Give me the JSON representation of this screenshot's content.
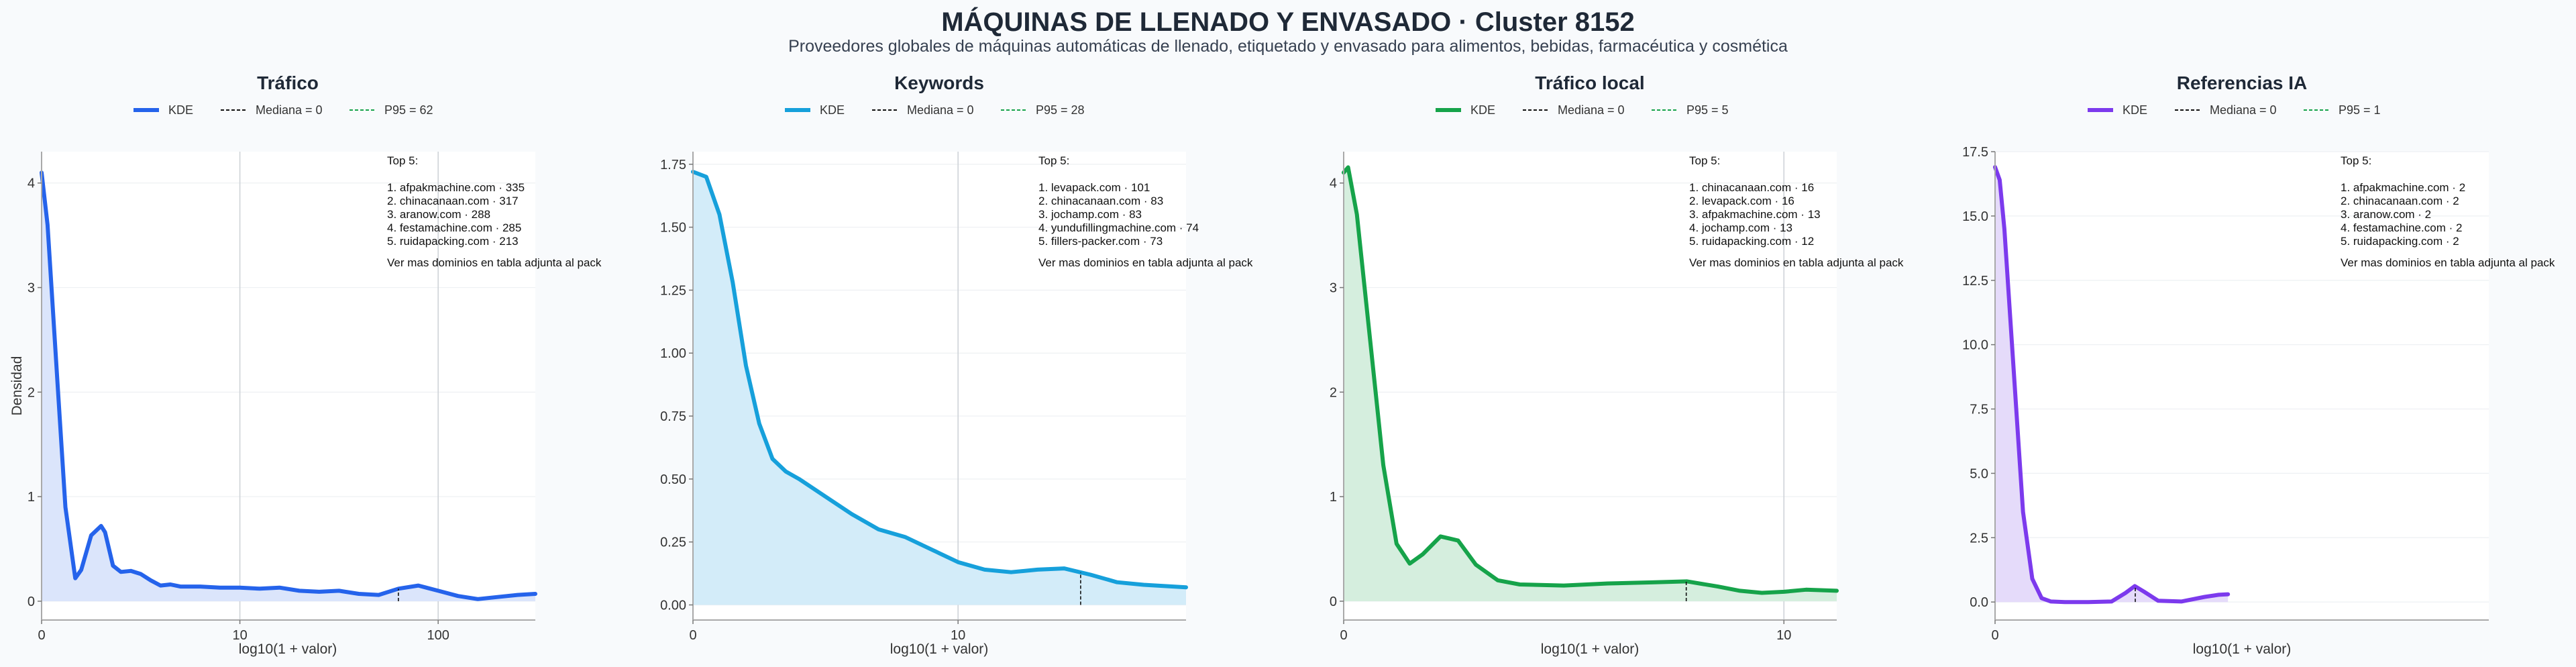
{
  "title": "MÁQUINAS DE LLENADO Y ENVASADO · Cluster 8152",
  "subtitle": "Proveedores globales de máquinas automáticas de llenado, etiquetado y envasado para alimentos, bebidas, farmacéutica y cosmética",
  "chart_data": [
    {
      "type": "area",
      "title": "Tráfico",
      "xlabel": "log10(1 + valor)",
      "ylabel": "Densidad",
      "color": "#2563eb",
      "fill": "#dbe5fb",
      "x_scale": "log1p",
      "xlim": [
        0,
        2.49
      ],
      "ylim": [
        -0.18,
        4.3
      ],
      "x_ticks": [
        {
          "value": 0,
          "label": "0"
        },
        {
          "value": 1,
          "label": "10"
        },
        {
          "value": 2,
          "label": "100"
        }
      ],
      "y_ticks": [
        {
          "value": 0,
          "label": "0"
        },
        {
          "value": 1,
          "label": "1"
        },
        {
          "value": 2,
          "label": "2"
        },
        {
          "value": 3,
          "label": "3"
        },
        {
          "value": 4,
          "label": "4"
        }
      ],
      "legend": {
        "kde": "KDE",
        "median": "Mediana = 0",
        "p95": "P95 = 62"
      },
      "median": 0,
      "p95": 62,
      "kde": {
        "x": [
          0,
          0.03,
          0.08,
          0.12,
          0.17,
          0.2,
          0.25,
          0.3,
          0.32,
          0.36,
          0.4,
          0.45,
          0.5,
          0.55,
          0.6,
          0.65,
          0.7,
          0.8,
          0.9,
          1.0,
          1.1,
          1.2,
          1.3,
          1.4,
          1.5,
          1.6,
          1.7,
          1.8,
          1.9,
          2.0,
          2.1,
          2.2,
          2.3,
          2.4,
          2.49
        ],
        "y": [
          4.1,
          3.6,
          2.1,
          0.9,
          0.22,
          0.3,
          0.63,
          0.72,
          0.66,
          0.34,
          0.28,
          0.29,
          0.26,
          0.2,
          0.15,
          0.16,
          0.14,
          0.14,
          0.13,
          0.13,
          0.12,
          0.13,
          0.1,
          0.09,
          0.1,
          0.07,
          0.06,
          0.12,
          0.15,
          0.1,
          0.05,
          0.02,
          0.04,
          0.06,
          0.07
        ]
      },
      "top5_title": "Top 5:",
      "top5": [
        "1. afpakmachine.com · 335",
        "2. chinacanaan.com · 317",
        "3. aranow.com · 288",
        "4. festamachine.com · 285",
        "5. ruidapacking.com · 213"
      ],
      "note": "Ver mas dominios en tabla adjunta al pack"
    },
    {
      "type": "area",
      "title": "Keywords",
      "xlabel": "log10(1 + valor)",
      "ylabel": "",
      "color": "#16a0db",
      "fill": "#d3ecf9",
      "x_scale": "log1p",
      "xlim": [
        0,
        1.86
      ],
      "ylim": [
        -0.06,
        1.8
      ],
      "x_ticks": [
        {
          "value": 0,
          "label": "0"
        },
        {
          "value": 1,
          "label": "10"
        }
      ],
      "y_ticks": [
        {
          "value": 0,
          "label": "0.00"
        },
        {
          "value": 0.25,
          "label": "0.25"
        },
        {
          "value": 0.5,
          "label": "0.50"
        },
        {
          "value": 0.75,
          "label": "0.75"
        },
        {
          "value": 1.0,
          "label": "1.00"
        },
        {
          "value": 1.25,
          "label": "1.25"
        },
        {
          "value": 1.5,
          "label": "1.50"
        },
        {
          "value": 1.75,
          "label": "1.75"
        }
      ],
      "legend": {
        "kde": "KDE",
        "median": "Mediana = 0",
        "p95": "P95 = 28"
      },
      "median": 0,
      "p95": 28,
      "kde": {
        "x": [
          0,
          0.05,
          0.1,
          0.15,
          0.2,
          0.25,
          0.3,
          0.35,
          0.4,
          0.5,
          0.6,
          0.7,
          0.8,
          0.9,
          1.0,
          1.1,
          1.2,
          1.3,
          1.4,
          1.5,
          1.6,
          1.7,
          1.86
        ],
        "y": [
          1.72,
          1.7,
          1.55,
          1.28,
          0.95,
          0.72,
          0.58,
          0.53,
          0.5,
          0.43,
          0.36,
          0.3,
          0.27,
          0.22,
          0.17,
          0.14,
          0.13,
          0.14,
          0.145,
          0.12,
          0.09,
          0.08,
          0.07
        ]
      },
      "top5_title": "Top 5:",
      "top5": [
        "1. levapack.com · 101",
        "2. chinacanaan.com · 83",
        "3. jochamp.com · 83",
        "4. yundufillingmachine.com · 74",
        "5. fillers-packer.com · 73"
      ],
      "note": "Ver mas dominios en tabla adjunta al pack"
    },
    {
      "type": "area",
      "title": "Tráfico local",
      "xlabel": "log10(1 + valor)",
      "ylabel": "",
      "color": "#16a34a",
      "fill": "#d5eede",
      "x_scale": "log1p",
      "xlim": [
        0,
        1.12
      ],
      "ylim": [
        -0.18,
        4.3
      ],
      "x_ticks": [
        {
          "value": 0,
          "label": "0"
        },
        {
          "value": 1,
          "label": "10"
        }
      ],
      "y_ticks": [
        {
          "value": 0,
          "label": "0"
        },
        {
          "value": 1,
          "label": "1"
        },
        {
          "value": 2,
          "label": "2"
        },
        {
          "value": 3,
          "label": "3"
        },
        {
          "value": 4,
          "label": "4"
        }
      ],
      "legend": {
        "kde": "KDE",
        "median": "Mediana = 0",
        "p95": "P95 = 5"
      },
      "median": 0,
      "p95": 5,
      "kde": {
        "x": [
          0,
          0.01,
          0.03,
          0.06,
          0.09,
          0.12,
          0.15,
          0.18,
          0.22,
          0.26,
          0.3,
          0.35,
          0.4,
          0.5,
          0.6,
          0.7,
          0.78,
          0.85,
          0.9,
          0.95,
          1.0,
          1.05,
          1.12
        ],
        "y": [
          4.1,
          4.15,
          3.7,
          2.5,
          1.3,
          0.55,
          0.36,
          0.45,
          0.62,
          0.58,
          0.35,
          0.2,
          0.16,
          0.15,
          0.17,
          0.18,
          0.19,
          0.14,
          0.1,
          0.08,
          0.09,
          0.11,
          0.1
        ]
      },
      "top5_title": "Top 5:",
      "top5": [
        "1. chinacanaan.com · 16",
        "2. levapack.com · 16",
        "3. afpakmachine.com · 13",
        "4. jochamp.com · 13",
        "5. ruidapacking.com · 12"
      ],
      "note": "Ver mas dominios en tabla adjunta al pack"
    },
    {
      "type": "area",
      "title": "Referencias IA",
      "xlabel": "log10(1 + valor)",
      "ylabel": "",
      "color": "#7c3aed",
      "fill": "#e5dbfa",
      "x_scale": "log1p",
      "xlim": [
        0,
        1.06
      ],
      "ylim": [
        -0.7,
        17.5
      ],
      "x_ticks": [
        {
          "value": 0,
          "label": "0"
        }
      ],
      "y_ticks": [
        {
          "value": 0,
          "label": "0.0"
        },
        {
          "value": 2.5,
          "label": "2.5"
        },
        {
          "value": 5,
          "label": "5.0"
        },
        {
          "value": 7.5,
          "label": "7.5"
        },
        {
          "value": 10,
          "label": "10.0"
        },
        {
          "value": 12.5,
          "label": "12.5"
        },
        {
          "value": 15,
          "label": "15.0"
        },
        {
          "value": 17.5,
          "label": "17.5"
        }
      ],
      "legend": {
        "kde": "KDE",
        "median": "Mediana = 0",
        "p95": "P95 = 1"
      },
      "median": 0,
      "p95": 1,
      "kde": {
        "x": [
          0,
          0.01,
          0.02,
          0.04,
          0.06,
          0.08,
          0.1,
          0.12,
          0.15,
          0.2,
          0.25,
          0.28,
          0.3,
          0.32,
          0.35,
          0.4,
          0.45,
          0.48,
          0.5
        ],
        "y": [
          16.9,
          16.4,
          14.5,
          9.0,
          3.5,
          0.9,
          0.15,
          0.02,
          0.0,
          0.0,
          0.02,
          0.35,
          0.62,
          0.4,
          0.05,
          0.02,
          0.2,
          0.28,
          0.3
        ]
      },
      "top5_title": "Top 5:",
      "top5": [
        "1. afpakmachine.com · 2",
        "2. chinacanaan.com · 2",
        "3. aranow.com · 2",
        "4. festamachine.com · 2",
        "5. ruidapacking.com · 2"
      ],
      "note": "Ver mas dominios en tabla adjunta al pack"
    }
  ]
}
